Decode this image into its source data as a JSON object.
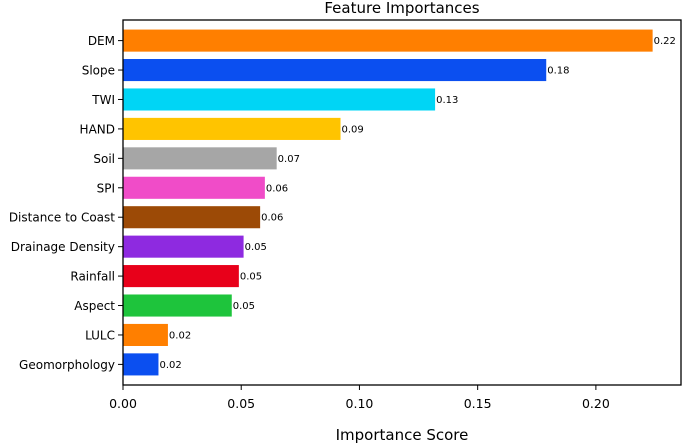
{
  "chart_data": {
    "type": "bar",
    "orientation": "horizontal",
    "title": "Feature Importances",
    "xlabel": "Importance Score",
    "ylabel": "",
    "xlim": [
      0,
      0.236
    ],
    "xticks": [
      0.0,
      0.05,
      0.1,
      0.15,
      0.2
    ],
    "xtick_labels": [
      "0.00",
      "0.05",
      "0.10",
      "0.15",
      "0.20"
    ],
    "grid": false,
    "categories": [
      "DEM",
      "Slope",
      "TWI",
      "HAND",
      "Soil",
      "SPI",
      "Distance to Coast",
      "Drainage Density",
      "Rainfall",
      "Aspect",
      "LULC",
      "Geomorphology"
    ],
    "values": [
      0.224,
      0.179,
      0.132,
      0.092,
      0.065,
      0.06,
      0.058,
      0.051,
      0.049,
      0.046,
      0.019,
      0.015
    ],
    "labels": [
      "0.22",
      "0.18",
      "0.13",
      "0.09",
      "0.07",
      "0.06",
      "0.06",
      "0.05",
      "0.05",
      "0.05",
      "0.02",
      "0.02"
    ],
    "colors": [
      "#ff7f00",
      "#0b4ff0",
      "#00d5f5",
      "#ffc400",
      "#a6a6a6",
      "#f04cc8",
      "#9c4a06",
      "#8e2ae0",
      "#e8001a",
      "#1ec43c",
      "#ff7f00",
      "#0b4ff0"
    ]
  }
}
